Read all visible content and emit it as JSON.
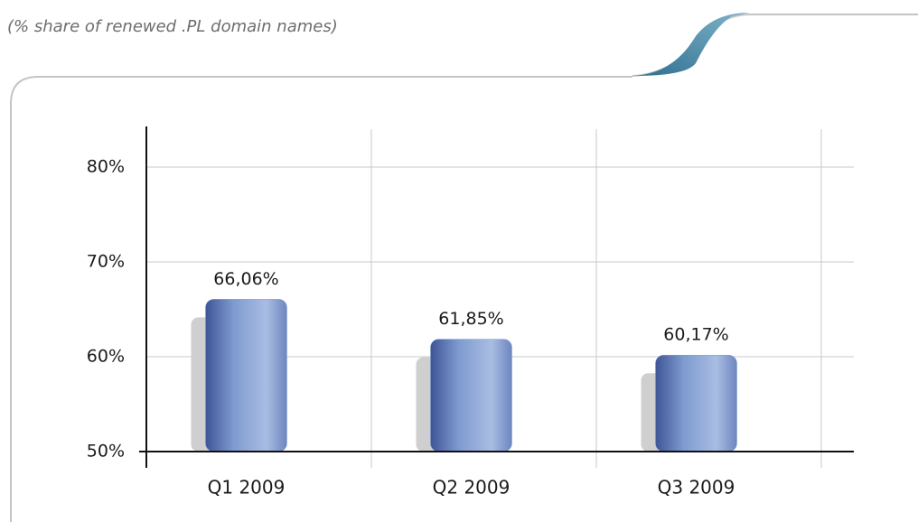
{
  "chart_data": {
    "type": "bar",
    "subtitle": "(% share of renewed .PL domain names)",
    "categories": [
      "Q1 2009",
      "Q2 2009",
      "Q3 2009"
    ],
    "values": [
      66.06,
      61.85,
      60.17
    ],
    "value_labels": [
      "66,06%",
      "61,85%",
      "60,17%"
    ],
    "color": "#7f9bd0",
    "ylim": [
      50,
      84
    ],
    "yticks": [
      {
        "value": 50,
        "label": "50%"
      },
      {
        "value": 60,
        "label": "60%"
      },
      {
        "value": 70,
        "label": "70%"
      },
      {
        "value": 80,
        "label": "80%"
      }
    ],
    "grid": true
  }
}
